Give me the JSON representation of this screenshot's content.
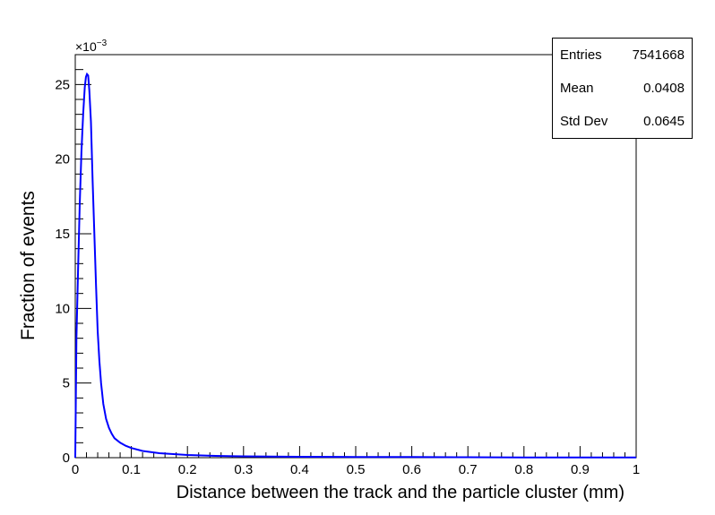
{
  "chart_data": {
    "type": "histogram",
    "xlabel": "Distance between the track and the particle cluster (mm)",
    "ylabel": "Fraction of events",
    "exponent_label": "×10",
    "exponent_power": "−3",
    "xlim": [
      0,
      1
    ],
    "ylim": [
      0,
      27
    ],
    "y_scale": 0.001,
    "x_ticks": [
      "0",
      "0.1",
      "0.2",
      "0.3",
      "0.4",
      "0.5",
      "0.6",
      "0.7",
      "0.8",
      "0.9",
      "1"
    ],
    "x_tick_values": [
      0,
      0.1,
      0.2,
      0.3,
      0.4,
      0.5,
      0.6,
      0.7,
      0.8,
      0.9,
      1
    ],
    "y_ticks": [
      "0",
      "5",
      "10",
      "15",
      "20",
      "25"
    ],
    "y_tick_values": [
      0,
      5,
      10,
      15,
      20,
      25
    ],
    "line_color": "#0000ff",
    "points": [
      [
        0,
        0
      ],
      [
        0.002,
        8
      ],
      [
        0.005,
        12.5
      ],
      [
        0.008,
        17
      ],
      [
        0.011,
        20.5
      ],
      [
        0.014,
        23
      ],
      [
        0.017,
        24.8
      ],
      [
        0.019,
        25.5
      ],
      [
        0.021,
        25.7
      ],
      [
        0.023,
        25.6
      ],
      [
        0.025,
        24.6
      ],
      [
        0.028,
        22.5
      ],
      [
        0.031,
        18.5
      ],
      [
        0.034,
        15
      ],
      [
        0.037,
        11.5
      ],
      [
        0.04,
        8.5
      ],
      [
        0.043,
        6.5
      ],
      [
        0.046,
        5
      ],
      [
        0.05,
        3.6
      ],
      [
        0.055,
        2.6
      ],
      [
        0.06,
        2.0
      ],
      [
        0.065,
        1.6
      ],
      [
        0.07,
        1.3
      ],
      [
        0.08,
        1.0
      ],
      [
        0.09,
        0.8
      ],
      [
        0.1,
        0.65
      ],
      [
        0.12,
        0.45
      ],
      [
        0.15,
        0.3
      ],
      [
        0.2,
        0.18
      ],
      [
        0.25,
        0.12
      ],
      [
        0.3,
        0.09
      ],
      [
        0.4,
        0.06
      ],
      [
        0.5,
        0.05
      ],
      [
        0.6,
        0.04
      ],
      [
        0.7,
        0.03
      ],
      [
        0.8,
        0.02
      ],
      [
        0.9,
        0.02
      ],
      [
        1.0,
        0.01
      ]
    ]
  },
  "stats": {
    "entries_label": "Entries",
    "entries_value": "7541668",
    "mean_label": "Mean",
    "mean_value": "0.0408",
    "stddev_label": "Std Dev",
    "stddev_value": "0.0645"
  }
}
